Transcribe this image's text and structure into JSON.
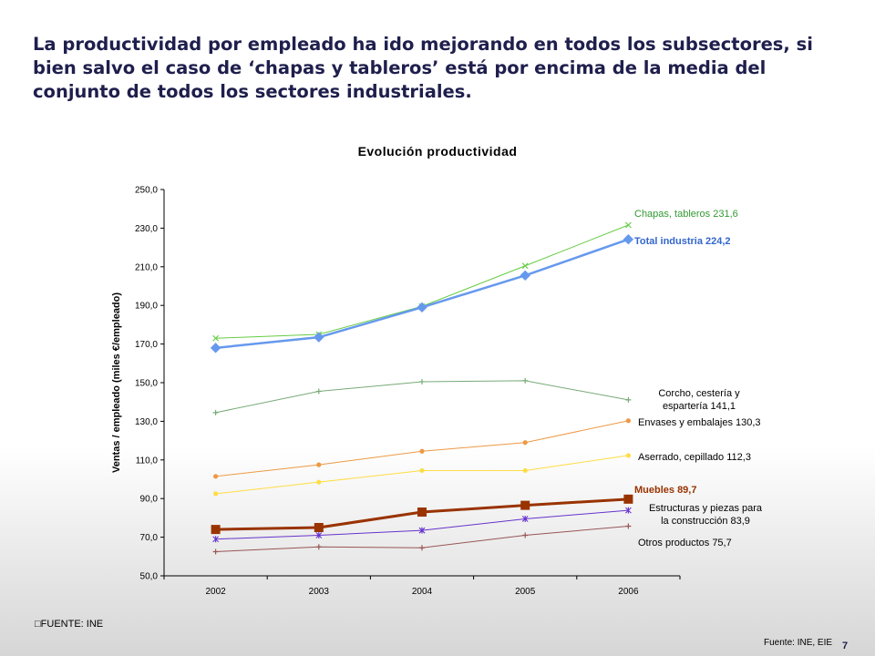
{
  "headline": "La productividad por empleado ha ido mejorando en todos los subsectores, si bien salvo el caso de ‘chapas y tableros’ está por encima de la media del conjunto de todos los sectores industriales.",
  "footnote_left": "FUENTE: INE",
  "footnote_right": "Fuente: INE, EIE",
  "page_number": "7",
  "chart_data": {
    "type": "line",
    "title": "Evolución productividad",
    "xlabel": "",
    "ylabel": "Ventas / empleado (miles €/empleado)",
    "categories": [
      "2002",
      "2003",
      "2004",
      "2005",
      "2006"
    ],
    "ylim": [
      50,
      250
    ],
    "yticks": [
      "50,0",
      "70,0",
      "90,0",
      "110,0",
      "130,0",
      "150,0",
      "170,0",
      "190,0",
      "210,0",
      "230,0",
      "250,0"
    ],
    "grid": false,
    "legend": "inline labels at right end of each series",
    "series": [
      {
        "name": "Chapas, tableros 231,6",
        "label_lines": [
          "Chapas, tableros 231,6"
        ],
        "values": [
          173.0,
          175.0,
          189.5,
          210.5,
          231.6
        ],
        "color": "#66cc44",
        "label_color": "#339933",
        "marker": "x",
        "width": 1,
        "bold": false
      },
      {
        "name": "Total industria 224,2",
        "label_lines": [
          "Total industria 224,2"
        ],
        "values": [
          168.0,
          173.5,
          189.0,
          205.5,
          224.2
        ],
        "color": "#6699ee",
        "label_color": "#3366cc",
        "marker": "diamond",
        "width": 2.5,
        "bold": true
      },
      {
        "name": "Corcho, cestería y espartería 141,1",
        "label_lines": [
          "Corcho, cestería y",
          "espartería 141,1"
        ],
        "values": [
          134.5,
          145.5,
          150.5,
          151.0,
          141.1
        ],
        "color": "#77aa77",
        "label_color": "#000000",
        "marker": "plus",
        "width": 1,
        "bold": false
      },
      {
        "name": "Envases y embalajes 130,3",
        "label_lines": [
          "Envases y embalajes 130,3"
        ],
        "values": [
          101.5,
          107.5,
          114.5,
          119.0,
          130.3
        ],
        "color": "#ee9944",
        "label_color": "#000000",
        "marker": "dot",
        "width": 1,
        "bold": false
      },
      {
        "name": "Aserrado, cepillado 112,3",
        "label_lines": [
          "Aserrado, cepillado 112,3"
        ],
        "values": [
          92.5,
          98.5,
          104.5,
          104.5,
          112.3
        ],
        "color": "#ffdd44",
        "label_color": "#000000",
        "marker": "dot",
        "width": 1,
        "bold": false
      },
      {
        "name": "Muebles 89,7",
        "label_lines": [
          "Muebles 89,7"
        ],
        "values": [
          74.0,
          75.0,
          83.0,
          86.5,
          89.7
        ],
        "color": "#993300",
        "label_color": "#993300",
        "marker": "square",
        "width": 3,
        "bold": true
      },
      {
        "name": "Estructuras y piezas para la construcción 83,9",
        "label_lines": [
          "Estructuras y piezas para",
          "la construcción 83,9"
        ],
        "values": [
          69.0,
          71.0,
          73.5,
          79.5,
          83.9
        ],
        "color": "#6633cc",
        "label_color": "#000000",
        "marker": "star",
        "width": 1,
        "bold": false
      },
      {
        "name": "Otros productos 75,7",
        "label_lines": [
          "Otros productos 75,7"
        ],
        "values": [
          62.5,
          65.0,
          64.5,
          71.0,
          75.7
        ],
        "color": "#995555",
        "label_color": "#000000",
        "marker": "plus",
        "width": 1,
        "bold": false
      }
    ]
  }
}
